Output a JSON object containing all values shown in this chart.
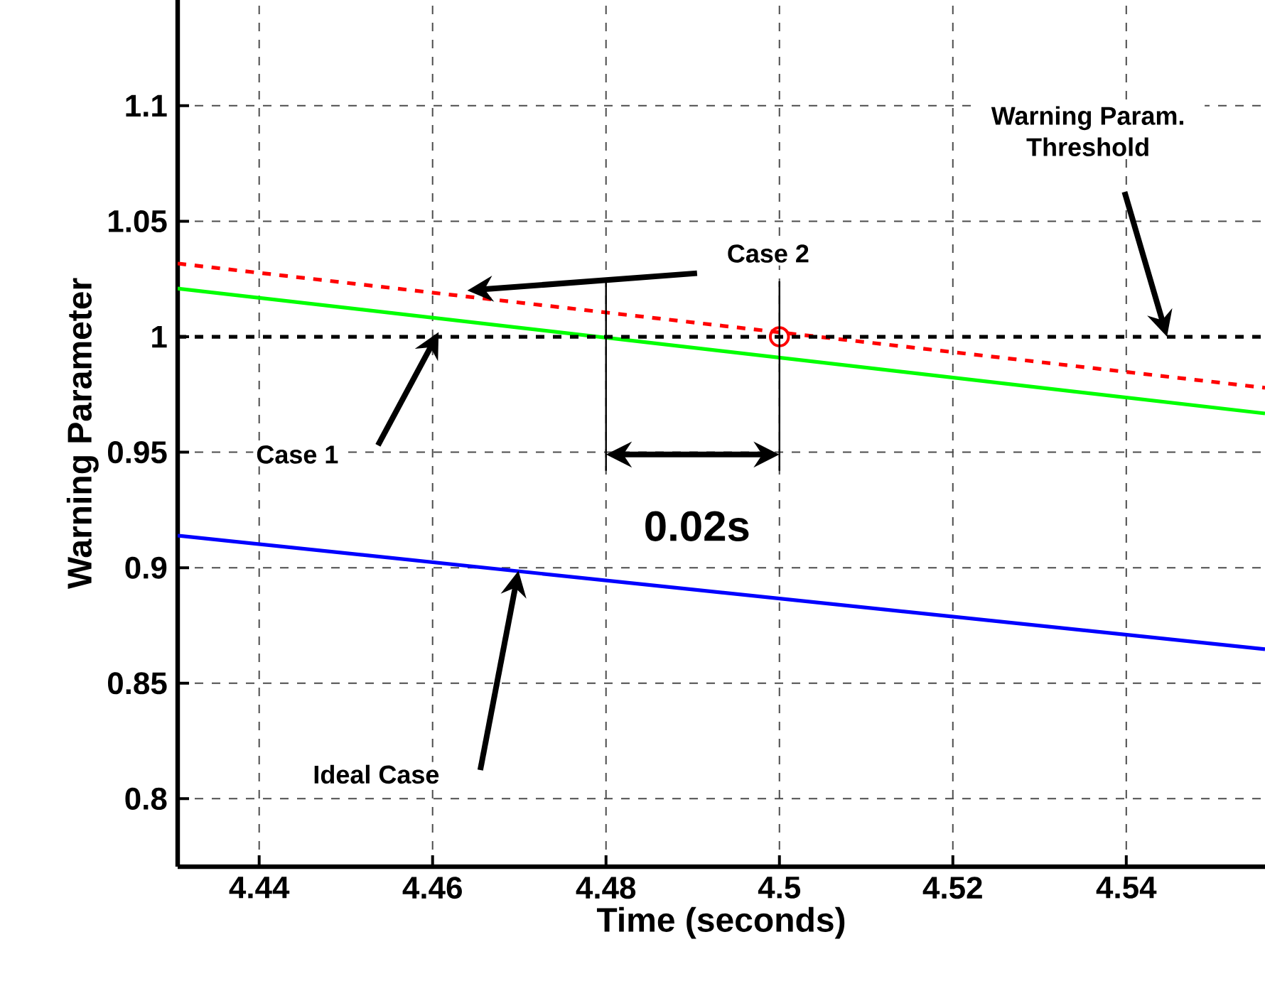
{
  "chart_data": {
    "type": "line",
    "xlabel": "Time (seconds)",
    "ylabel": "Warning Parameter",
    "xlim": [
      4.4306,
      4.556
    ],
    "ylim": [
      0.7706,
      1.1458
    ],
    "xticks": [
      4.44,
      4.46,
      4.48,
      4.5,
      4.52,
      4.54
    ],
    "yticks": [
      0.8,
      0.85,
      0.9,
      0.95,
      1,
      1.05,
      1.1
    ],
    "grid": true,
    "series": [
      {
        "color": "#0000ff",
        "x": [
          4.4306,
          4.556
        ],
        "values": [
          0.9139,
          0.8647
        ],
        "line_style": "solid",
        "marker": "none"
      },
      {
        "color": "#00ff00",
        "x": [
          4.4306,
          4.556
        ],
        "values": [
          1.0209,
          0.9668
        ],
        "line_style": "solid",
        "marker": "none"
      },
      {
        "color": "#ff0000",
        "x": [
          4.4306,
          4.556
        ],
        "values": [
          1.0317,
          0.9779
        ],
        "line_style": "dashed",
        "marker": "none"
      },
      {
        "type": "scatter",
        "color": "#ff0000",
        "x": [
          4.5
        ],
        "values": [
          1.0
        ],
        "marker": "circle"
      }
    ],
    "ref_lines": [
      {
        "axis": "y",
        "value": 1,
        "color": "#000000",
        "line_style": "dashed"
      }
    ],
    "annotations": [
      "Case 2",
      "Case 1",
      "Ideal Case",
      "Warning Param. Threshold",
      "0.02s"
    ]
  }
}
